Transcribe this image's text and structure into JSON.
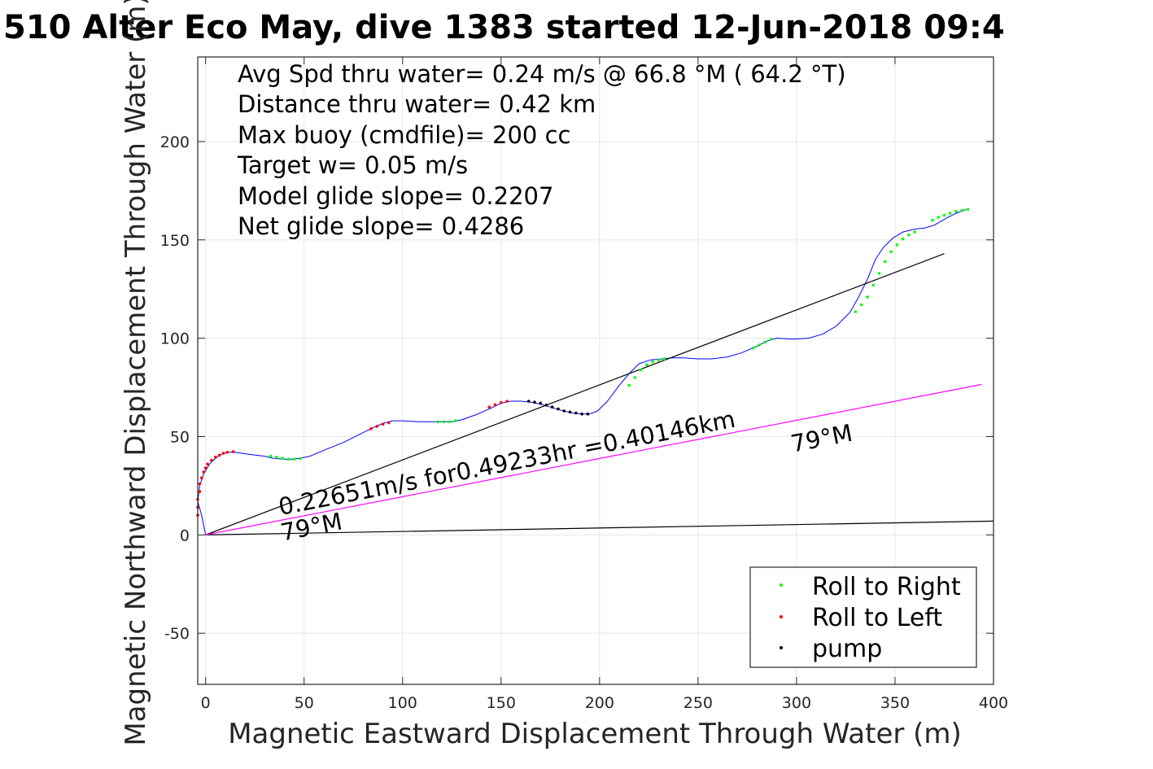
{
  "chart_data": {
    "type": "line",
    "title": "510 Alter Eco May, dive 1383 started 12-Jun-2018 09:4",
    "xlabel": "Magnetic Eastward Displacement Through Water (m)",
    "ylabel": "Magnetic Northward Displacement Through Water (m)",
    "xlim": [
      -4,
      400
    ],
    "ylim": [
      -76,
      243
    ],
    "xticks": [
      "0",
      "50",
      "100",
      "150",
      "200",
      "250",
      "300",
      "350",
      "400"
    ],
    "yticks": [
      "-50",
      "0",
      "50",
      "100",
      "150",
      "200"
    ],
    "xtick_values": [
      0,
      50,
      100,
      150,
      200,
      250,
      300,
      350,
      400
    ],
    "ytick_values": [
      -50,
      0,
      50,
      100,
      150,
      200
    ],
    "grid": true,
    "info_lines": [
      "Avg Spd thru water=  0.24 m/s @  66.8 °M ( 64.2 °T)",
      "Distance thru water=  0.42 km",
      "Max buoy (cmdfile)= 200 cc",
      "Target w= 0.05 m/s",
      "Model glide slope= 0.2207",
      "Net glide slope= 0.4286"
    ],
    "annotations": [
      {
        "text": "0.22651m/s for0.49233hr =0.40146km",
        "x": 38,
        "y": 10,
        "angle_deg": -11
      },
      {
        "text": "79°M",
        "x": 39,
        "y": -3,
        "angle_deg": -11
      },
      {
        "text": "79°M",
        "x": 298,
        "y": 42,
        "angle_deg": -11
      }
    ],
    "series": [
      {
        "name": "",
        "color": "#0000ff",
        "x": [
          0,
          -2,
          -4,
          -3,
          -1,
          2,
          5,
          8,
          12,
          15,
          22,
          30,
          34,
          40,
          44,
          48,
          53,
          60,
          70,
          80,
          86,
          91,
          95,
          100,
          108,
          118,
          125,
          130,
          137,
          144,
          150,
          155,
          160,
          165,
          170,
          175,
          180,
          186,
          191,
          195,
          199,
          204,
          210,
          215,
          220,
          226,
          232,
          237,
          243,
          250,
          257,
          265,
          272,
          280,
          285,
          290,
          298,
          306,
          313,
          320,
          327,
          331,
          336,
          340,
          344,
          349,
          354,
          360,
          365,
          370,
          376,
          381,
          386
        ],
        "y": [
          0,
          10,
          17,
          25,
          31,
          36,
          39,
          41,
          42,
          42,
          41,
          40,
          39,
          38.5,
          38.5,
          39,
          40,
          43,
          47,
          52,
          55,
          57,
          58,
          58,
          57.5,
          57.5,
          57.5,
          58.5,
          61,
          64,
          67,
          68,
          68,
          67.5,
          66.5,
          65,
          63.5,
          62,
          61.5,
          61.5,
          63,
          68,
          76,
          82,
          87,
          89,
          89.5,
          90,
          90,
          89.5,
          89.5,
          90.5,
          92.5,
          96,
          98.5,
          100,
          99.5,
          100,
          102,
          106,
          113,
          120,
          130,
          140,
          146,
          151,
          154,
          155.5,
          156,
          157.5,
          161,
          163.5,
          165.5
        ]
      },
      {
        "name": "",
        "color": "#000000",
        "x": [
          0,
          375
        ],
        "y": [
          0,
          143
        ]
      },
      {
        "name": "",
        "color": "#000000",
        "x": [
          0,
          400
        ],
        "y": [
          0,
          7
        ]
      },
      {
        "name": "",
        "color": "#ff00ff",
        "x": [
          0,
          394
        ],
        "y": [
          0,
          76.5
        ]
      }
    ],
    "markers": [
      {
        "name": "Roll to Right",
        "color": "#00ff00",
        "x": [
          33,
          36,
          39,
          42,
          45,
          48,
          118,
          121,
          124,
          127,
          215,
          218,
          221,
          224,
          227,
          230,
          233,
          278,
          281,
          284,
          287,
          330,
          333,
          336,
          339,
          342,
          345,
          348,
          351,
          354,
          357,
          360,
          369,
          372,
          375,
          378,
          381,
          384,
          387
        ],
        "y": [
          40,
          39.5,
          39,
          38.5,
          38.5,
          38.8,
          57.5,
          57.5,
          57.5,
          58,
          76,
          80,
          84,
          86.5,
          88,
          89,
          89.5,
          95,
          96.5,
          98,
          99.5,
          113.5,
          117,
          121,
          127,
          133,
          139,
          144,
          147.5,
          150.5,
          152.5,
          154,
          160,
          161.5,
          162.5,
          163.5,
          164.5,
          165,
          165.5
        ]
      },
      {
        "name": "Roll to Left",
        "color": "#ff0000",
        "x": [
          -4,
          -4,
          -4,
          -3,
          -3,
          -2,
          -1,
          0,
          1,
          3,
          5,
          7,
          9,
          11,
          14,
          84,
          87,
          90,
          93,
          144,
          147,
          150,
          153
        ],
        "y": [
          10,
          14,
          18,
          22,
          26,
          29,
          32,
          34,
          36,
          38,
          39.5,
          40.5,
          41.5,
          42,
          42.3,
          54,
          55.2,
          56.3,
          57,
          65,
          66.2,
          67.3,
          68
        ]
      },
      {
        "name": "pump",
        "color": "#000000",
        "x": [
          164,
          167,
          170,
          173,
          176,
          179,
          182,
          185,
          188,
          191,
          194
        ],
        "y": [
          68,
          67.5,
          67,
          66,
          65,
          64,
          63,
          62.5,
          62,
          61.5,
          61.5
        ]
      }
    ],
    "legend": {
      "position": "bottom-right",
      "entries": [
        "Roll to Right",
        "Roll to Left",
        "pump"
      ],
      "colors": [
        "#00ff00",
        "#ff0000",
        "#000000"
      ]
    }
  }
}
